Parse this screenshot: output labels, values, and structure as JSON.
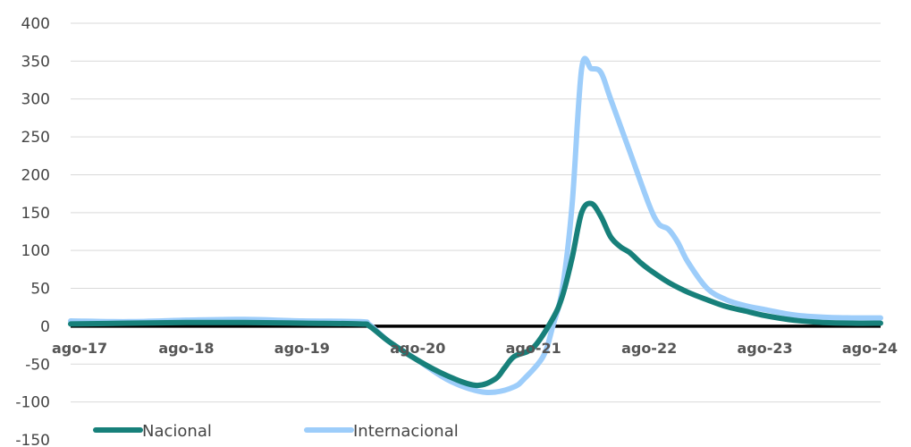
{
  "chart_data": {
    "type": "line",
    "title": "",
    "xlabel": "",
    "ylabel": "",
    "ylim": [
      -150,
      400
    ],
    "yticks": [
      -150,
      -100,
      -50,
      0,
      50,
      100,
      150,
      200,
      250,
      300,
      350,
      400
    ],
    "xticks": [
      "ago-17",
      "ago-18",
      "ago-19",
      "ago-20",
      "ago-21",
      "ago-22",
      "ago-23",
      "ago-24"
    ],
    "grid": "horizontal",
    "legend_position": "bottom-left",
    "series": [
      {
        "name": "Nacional",
        "color": "#17807a",
        "x": [
          0,
          6,
          12,
          18,
          24,
          30,
          31,
          33,
          36,
          39,
          42,
          44,
          45,
          46,
          48,
          50,
          51,
          52,
          53,
          54,
          55,
          56,
          57,
          58,
          59,
          60,
          62,
          64,
          66,
          68,
          70,
          72,
          75,
          78,
          81,
          84
        ],
        "values": [
          3,
          4,
          5,
          5,
          4,
          3,
          0,
          -20,
          -45,
          -65,
          -78,
          -70,
          -55,
          -40,
          -28,
          10,
          40,
          90,
          150,
          162,
          145,
          118,
          105,
          97,
          85,
          75,
          58,
          45,
          35,
          26,
          20,
          14,
          8,
          5,
          4,
          4
        ]
      },
      {
        "name": "Internacional",
        "color": "#9dcdfa",
        "x": [
          0,
          6,
          12,
          18,
          24,
          30,
          31,
          33,
          36,
          39,
          42,
          44,
          46,
          47,
          49,
          50,
          51,
          52,
          53,
          54,
          55,
          56,
          58,
          60,
          61,
          62,
          63,
          64,
          66,
          68,
          70,
          72,
          75,
          78,
          81,
          84
        ],
        "values": [
          7,
          6,
          8,
          9,
          7,
          6,
          2,
          -20,
          -45,
          -70,
          -85,
          -87,
          -80,
          -70,
          -40,
          0,
          50,
          160,
          340,
          340,
          335,
          300,
          230,
          160,
          135,
          128,
          110,
          85,
          50,
          35,
          27,
          22,
          15,
          12,
          11,
          11
        ]
      }
    ]
  }
}
